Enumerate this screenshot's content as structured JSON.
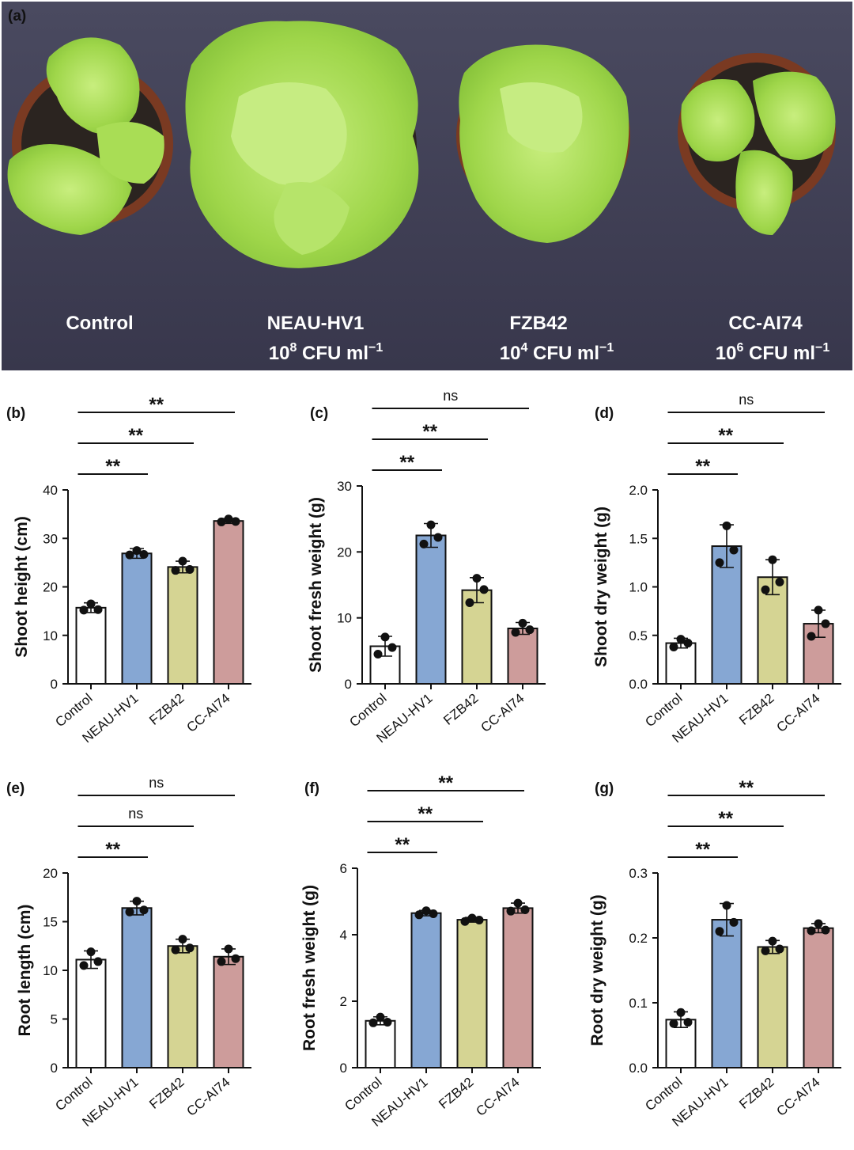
{
  "photo": {
    "panel_letter": "(a)",
    "labels": [
      {
        "name": "Control",
        "dose": "",
        "exp": ""
      },
      {
        "name": "NEAU-HV1",
        "dose": "CFU ml",
        "base": "10",
        "exp": "8",
        "unit_exp": "−1"
      },
      {
        "name": "FZB42",
        "dose": "CFU ml",
        "base": "10",
        "exp": "4",
        "unit_exp": "−1"
      },
      {
        "name": "CC-AI74",
        "dose": "CFU ml",
        "base": "10",
        "exp": "6",
        "unit_exp": "−1"
      }
    ],
    "colors": {
      "background": "#403f55",
      "pot": "#7a3a22",
      "soil": "#2b2420",
      "leaf": "#9fd64a",
      "leaf_light": "#c8ee7e"
    }
  },
  "colors": {
    "Control": "#ffffff",
    "NEAU-HV1": "#86a7d3",
    "FZB42": "#d5d493",
    "CC-AI74": "#cd9c9b"
  },
  "chart_data": [
    {
      "panel": "(b)",
      "type": "bar",
      "categories": [
        "Control",
        "NEAU-HV1",
        "FZB42",
        "CC-AI74"
      ],
      "values": [
        15.7,
        26.9,
        24.1,
        33.6
      ],
      "errors": [
        1.0,
        1.0,
        1.2,
        0.5
      ],
      "points": [
        [
          16.5,
          15.2,
          15.3
        ],
        [
          27.5,
          26.6,
          26.7
        ],
        [
          25.3,
          23.4,
          23.6
        ],
        [
          34.0,
          33.4,
          33.5
        ]
      ],
      "ylabel": "Shoot height (cm)",
      "ylim": [
        0,
        40
      ],
      "yticks": [
        0,
        10,
        20,
        30,
        40
      ],
      "significance": [
        {
          "from": 0,
          "to": 1,
          "label": "**"
        },
        {
          "from": 0,
          "to": 2,
          "label": "**"
        },
        {
          "from": 0,
          "to": 3,
          "label": "**"
        }
      ]
    },
    {
      "panel": "(c)",
      "type": "bar",
      "categories": [
        "Control",
        "NEAU-HV1",
        "FZB42",
        "CC-AI74"
      ],
      "values": [
        5.7,
        22.5,
        14.2,
        8.4
      ],
      "errors": [
        1.5,
        1.8,
        1.9,
        0.9
      ],
      "points": [
        [
          7.1,
          4.5,
          5.5
        ],
        [
          24.1,
          21.2,
          22.2
        ],
        [
          16.0,
          12.3,
          14.3
        ],
        [
          9.2,
          7.8,
          8.2
        ]
      ],
      "ylabel": "Shoot fresh weight (g)",
      "ylim": [
        0,
        30
      ],
      "yticks": [
        0,
        10,
        20,
        30
      ],
      "significance": [
        {
          "from": 0,
          "to": 1,
          "label": "**"
        },
        {
          "from": 0,
          "to": 2,
          "label": "**"
        },
        {
          "from": 0,
          "to": 3,
          "label": "ns"
        }
      ]
    },
    {
      "panel": "(d)",
      "type": "bar",
      "categories": [
        "Control",
        "NEAU-HV1",
        "FZB42",
        "CC-AI74"
      ],
      "values": [
        0.42,
        1.42,
        1.1,
        0.62
      ],
      "errors": [
        0.05,
        0.22,
        0.18,
        0.14
      ],
      "points": [
        [
          0.46,
          0.38,
          0.42
        ],
        [
          1.63,
          1.25,
          1.38
        ],
        [
          1.28,
          0.97,
          1.05
        ],
        [
          0.76,
          0.49,
          0.62
        ]
      ],
      "ylabel": "Shoot dry weight (g)",
      "ylim": [
        0,
        2.0
      ],
      "yticks": [
        0.0,
        0.5,
        1.0,
        1.5,
        2.0
      ],
      "ytick_labels": [
        "0.0",
        "0.5",
        "1.0",
        "1.5",
        "2.0"
      ],
      "significance": [
        {
          "from": 0,
          "to": 1,
          "label": "**"
        },
        {
          "from": 0,
          "to": 2,
          "label": "**"
        },
        {
          "from": 0,
          "to": 3,
          "label": "ns"
        }
      ]
    },
    {
      "panel": "(e)",
      "type": "bar",
      "categories": [
        "Control",
        "NEAU-HV1",
        "FZB42",
        "CC-AI74"
      ],
      "values": [
        11.1,
        16.4,
        12.5,
        11.4
      ],
      "errors": [
        0.9,
        0.7,
        0.7,
        0.8
      ],
      "points": [
        [
          11.9,
          10.5,
          10.9
        ],
        [
          17.1,
          16.0,
          16.2
        ],
        [
          13.2,
          12.1,
          12.3
        ],
        [
          12.2,
          10.9,
          11.2
        ]
      ],
      "ylabel": "Root length (cm)",
      "ylim": [
        0,
        20
      ],
      "yticks": [
        0,
        5,
        10,
        15,
        20
      ],
      "significance": [
        {
          "from": 0,
          "to": 1,
          "label": "**"
        },
        {
          "from": 0,
          "to": 2,
          "label": "ns"
        },
        {
          "from": 0,
          "to": 3,
          "label": "ns"
        }
      ]
    },
    {
      "panel": "(f)",
      "type": "bar",
      "categories": [
        "Control",
        "NEAU-HV1",
        "FZB42",
        "CC-AI74"
      ],
      "values": [
        1.41,
        4.65,
        4.45,
        4.8
      ],
      "errors": [
        0.12,
        0.08,
        0.07,
        0.15
      ],
      "points": [
        [
          1.52,
          1.35,
          1.37
        ],
        [
          4.72,
          4.6,
          4.63
        ],
        [
          4.5,
          4.4,
          4.44
        ],
        [
          4.95,
          4.71,
          4.75
        ]
      ],
      "ylabel": "Root fresh weight (g)",
      "ylim": [
        0,
        6
      ],
      "yticks": [
        0,
        2,
        4,
        6
      ],
      "significance": [
        {
          "from": 0,
          "to": 1,
          "label": "**"
        },
        {
          "from": 0,
          "to": 2,
          "label": "**"
        },
        {
          "from": 0,
          "to": 3,
          "label": "**"
        }
      ]
    },
    {
      "panel": "(g)",
      "type": "bar",
      "categories": [
        "Control",
        "NEAU-HV1",
        "FZB42",
        "CC-AI74"
      ],
      "values": [
        0.074,
        0.228,
        0.186,
        0.215
      ],
      "errors": [
        0.012,
        0.025,
        0.01,
        0.007
      ],
      "points": [
        [
          0.085,
          0.068,
          0.07
        ],
        [
          0.25,
          0.21,
          0.224
        ],
        [
          0.195,
          0.18,
          0.183
        ],
        [
          0.222,
          0.211,
          0.212
        ]
      ],
      "ylabel": "Root dry weight (g)",
      "ylim": [
        0,
        0.3
      ],
      "yticks": [
        0.0,
        0.1,
        0.2,
        0.3
      ],
      "ytick_labels": [
        "0.0",
        "0.1",
        "0.2",
        "0.3"
      ],
      "significance": [
        {
          "from": 0,
          "to": 1,
          "label": "**"
        },
        {
          "from": 0,
          "to": 2,
          "label": "**"
        },
        {
          "from": 0,
          "to": 3,
          "label": "**"
        }
      ]
    }
  ]
}
